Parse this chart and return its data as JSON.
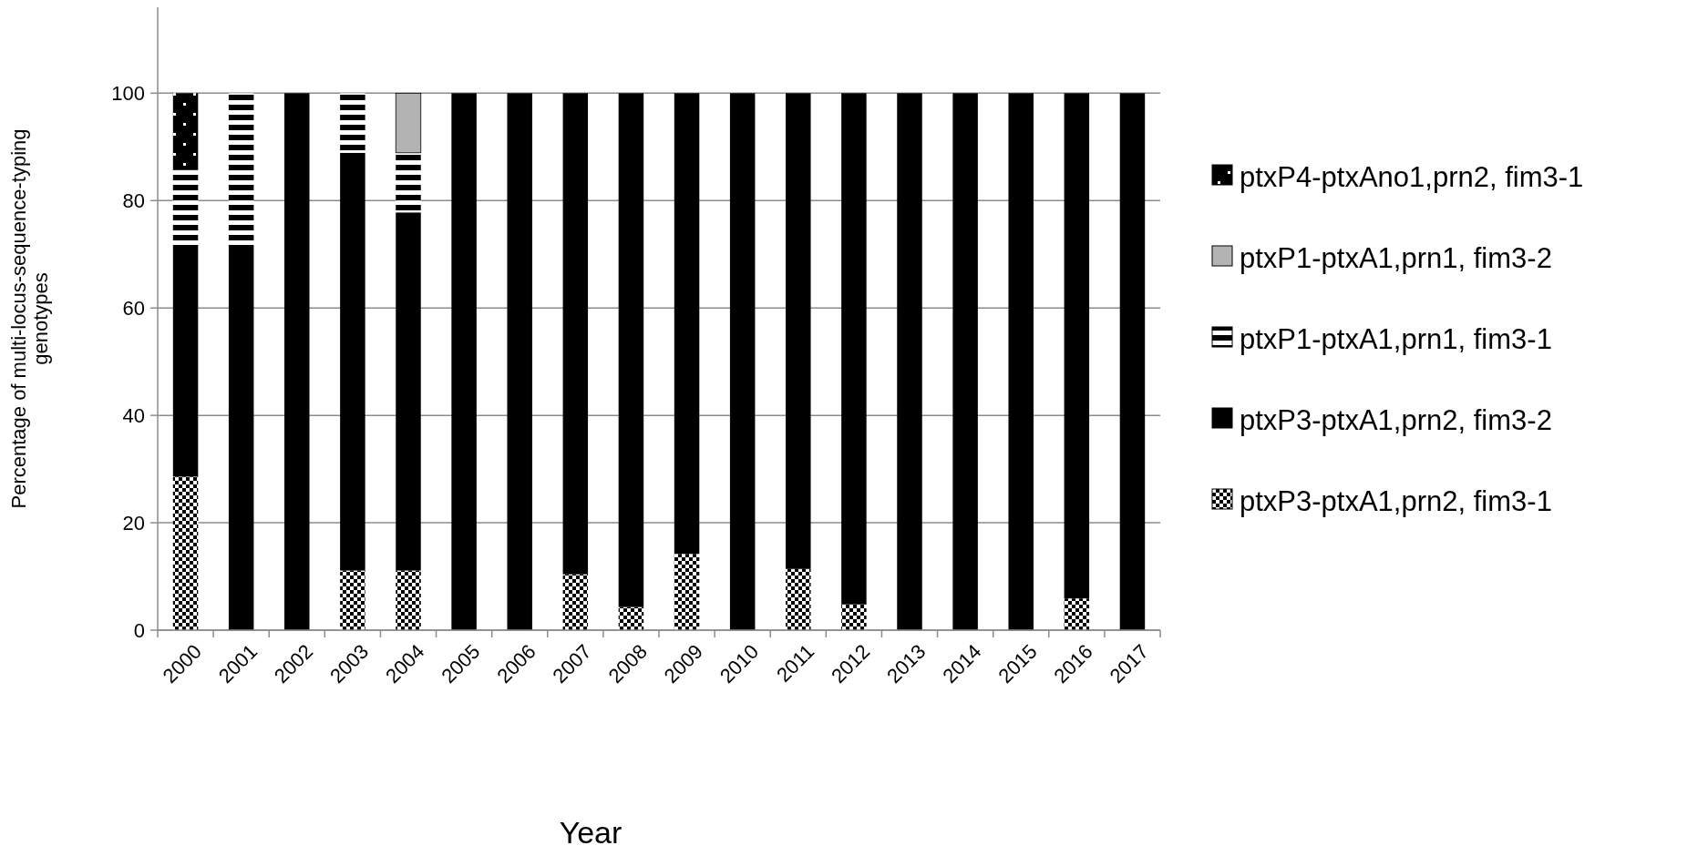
{
  "chart_data": {
    "type": "bar",
    "stacked": true,
    "xlabel": "Year",
    "ylabel": "Percentage of multi-locus-sequence-typing genotypes",
    "categories": [
      "2000",
      "2001",
      "2002",
      "2003",
      "2004",
      "2005",
      "2006",
      "2007",
      "2008",
      "2009",
      "2010",
      "2011",
      "2012",
      "2013",
      "2014",
      "2015",
      "2016",
      "2017"
    ],
    "series": [
      {
        "name": "ptxP3-ptxA1,prn2, fim3-1",
        "color": "#000000",
        "values": [
          28.6,
          0,
          0,
          11.1,
          11.1,
          0,
          0,
          10.4,
          4.3,
          14.2,
          0,
          11.4,
          4.8,
          0,
          0,
          0,
          5.9,
          0
        ]
      },
      {
        "name": "ptxP3-ptxA1,prn2, fim3-2",
        "color": "#000000",
        "values": [
          42.8,
          71.4,
          100,
          77.8,
          66.7,
          100,
          100,
          89.6,
          95.7,
          85.8,
          100,
          88.6,
          95.2,
          100,
          100,
          100,
          94.1,
          100
        ]
      },
      {
        "name": "ptxP1-ptxA1,prn1, fim3-1",
        "color": "#000000",
        "values": [
          14.3,
          28.6,
          0,
          11.1,
          11.1,
          0,
          0,
          0,
          0,
          0,
          0,
          0,
          0,
          0,
          0,
          0,
          0,
          0
        ]
      },
      {
        "name": "ptxP1-ptxA1,prn1, fim3-2",
        "color": "#b3b3b3",
        "values": [
          0,
          0,
          0,
          0,
          11.1,
          0,
          0,
          0,
          0,
          0,
          0,
          0,
          0,
          0,
          0,
          0,
          0,
          0
        ]
      },
      {
        "name": "ptxP4-ptxAno1,prn2, fim3-1",
        "color": "#000000",
        "values": [
          14.3,
          0,
          0,
          0,
          0,
          0,
          0,
          0,
          0,
          0,
          0,
          0,
          0,
          0,
          0,
          0,
          0,
          0
        ]
      }
    ],
    "ylim": [
      0,
      116
    ],
    "yticks": [
      0,
      20,
      40,
      60,
      80,
      100
    ],
    "grid": "y",
    "legend": "right"
  }
}
